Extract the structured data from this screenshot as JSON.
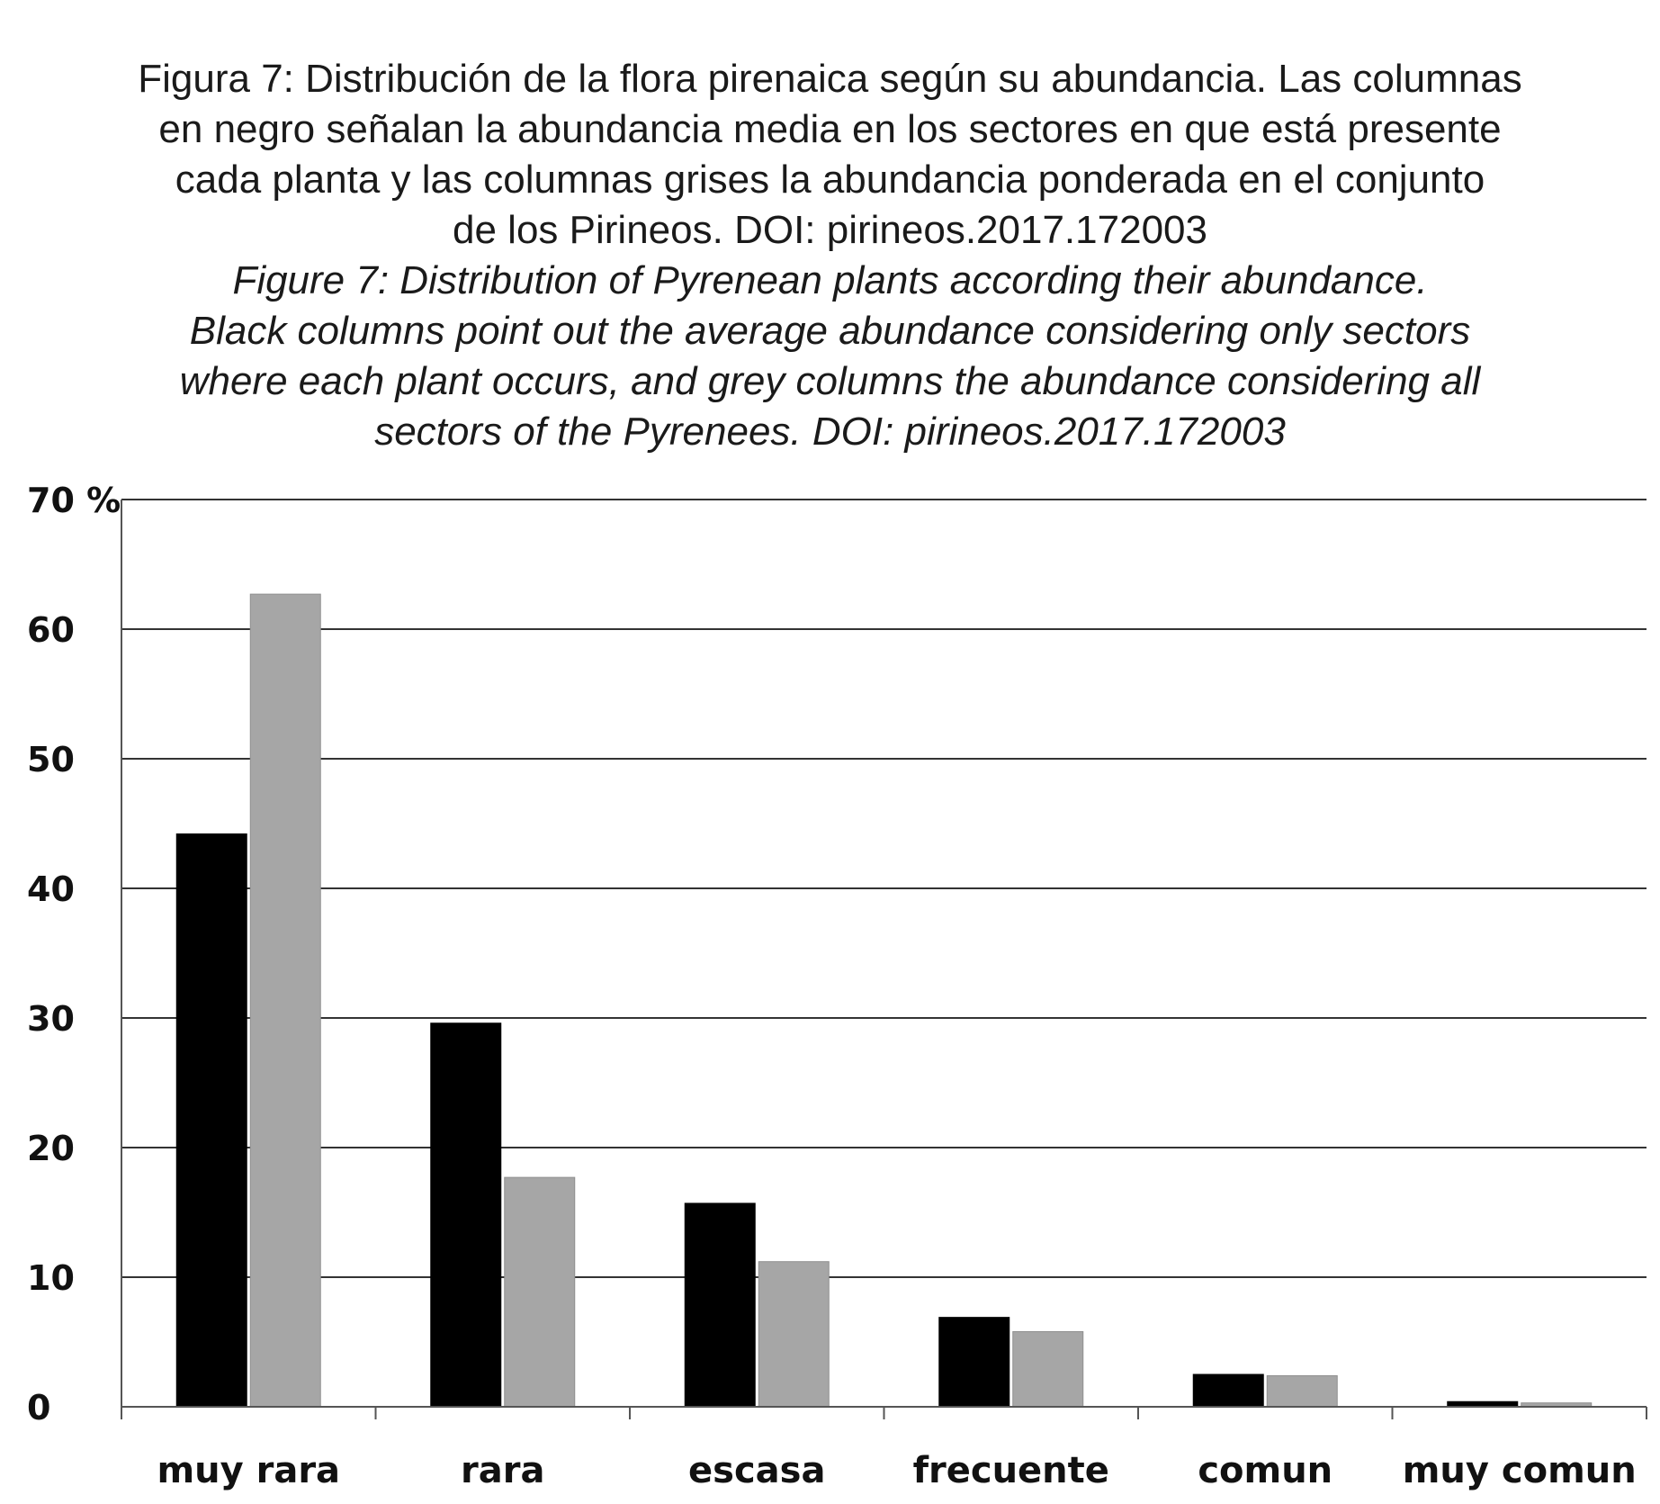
{
  "caption": {
    "spanish": [
      "Figura 7: Distribución de la flora pirenaica según su abundancia. Las columnas",
      "en negro señalan la abundancia media en los sectores en que está presente",
      "cada planta y las columnas grises la abundancia ponderada en el conjunto",
      "de los Pirineos. DOI: pirineos.2017.172003"
    ],
    "english": [
      "Figure 7: Distribution of  Pyrenean plants according their abundance.",
      "Black  columns  point  out  the  average  abundance  considering only sectors",
      "where each plant occurs, and grey columns the abundance considering all",
      "sectors of  the Pyrenees. DOI: pirineos.2017.172003"
    ]
  },
  "chart_data": {
    "type": "bar",
    "categories": [
      "muy rara",
      "rara",
      "escasa",
      "frecuente",
      "comun",
      "muy comun"
    ],
    "series": [
      {
        "values": [
          44.2,
          29.6,
          15.7,
          6.9,
          2.5,
          0.4
        ],
        "color": "#000000"
      },
      {
        "values": [
          62.7,
          17.7,
          11.2,
          5.8,
          2.4,
          0.3
        ],
        "color": "#a6a6a6"
      }
    ],
    "ylim": [
      0,
      70
    ],
    "yticks": [
      0,
      10,
      20,
      30,
      40,
      50,
      60,
      70
    ],
    "ytick_labels": [
      "0",
      "10",
      "20",
      "30",
      "40",
      "50",
      "60",
      "70 %"
    ],
    "grid": true
  }
}
